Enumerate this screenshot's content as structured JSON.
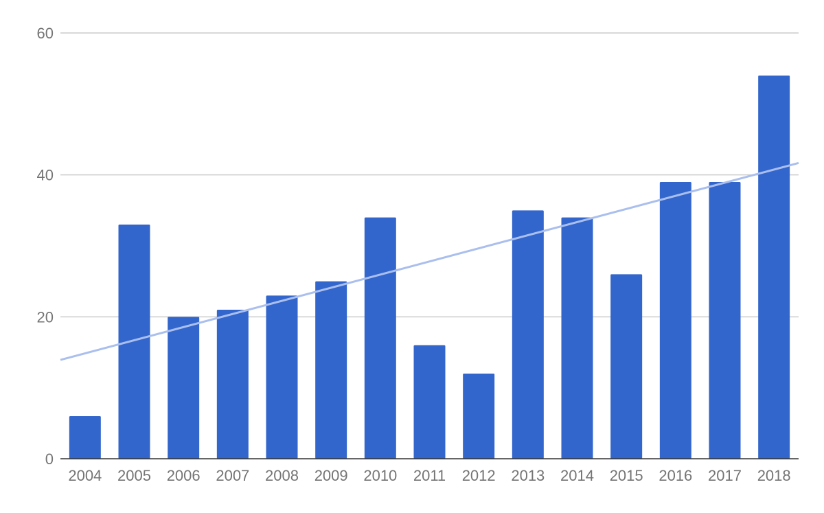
{
  "chart_data": {
    "type": "bar",
    "title": "",
    "xlabel": "",
    "ylabel": "",
    "categories": [
      "2004",
      "2005",
      "2006",
      "2007",
      "2008",
      "2009",
      "2010",
      "2011",
      "2012",
      "2013",
      "2014",
      "2015",
      "2016",
      "2017",
      "2018"
    ],
    "values": [
      6,
      33,
      20,
      21,
      23,
      25,
      34,
      16,
      12,
      35,
      34,
      26,
      39,
      39,
      54
    ],
    "ylim": [
      0,
      60
    ],
    "yticks": [
      "0",
      "20",
      "40",
      "60"
    ],
    "grid": true,
    "legend": "none",
    "trendline": "linear",
    "colors": {
      "bar": "#3366cc",
      "trendline": "#aabfee",
      "grid": "#cccccc",
      "axis": "#333333"
    }
  }
}
